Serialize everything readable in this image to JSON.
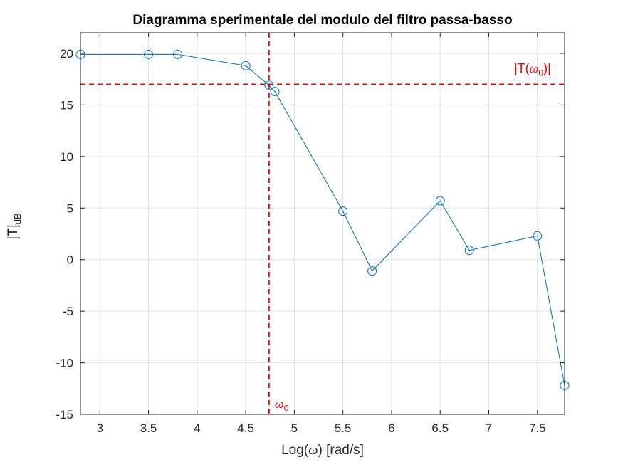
{
  "chart_data": {
    "type": "line",
    "title": "Diagramma sperimentale del modulo del filtro passa-basso",
    "xlabel": "Log(ω) [rad/s]",
    "ylabel": "|T|dB",
    "xlim": [
      2.8,
      7.78
    ],
    "ylim": [
      -15,
      22
    ],
    "xticks": [
      3,
      3.5,
      4,
      4.5,
      5,
      5.5,
      6,
      6.5,
      7,
      7.5
    ],
    "xtick_labels": [
      "3",
      "3.5",
      "4",
      "4.5",
      "5",
      "5.5",
      "6",
      "6.5",
      "7",
      "7.5"
    ],
    "yticks": [
      -15,
      -10,
      -5,
      0,
      5,
      10,
      15,
      20
    ],
    "ytick_labels": [
      "-15",
      "-10",
      "-5",
      "0",
      "5",
      "10",
      "15",
      "20"
    ],
    "grid": true,
    "series": [
      {
        "color": "#0072bd",
        "marker": "circle",
        "x": [
          2.8,
          3.5,
          3.8,
          4.5,
          4.74,
          4.8,
          5.5,
          5.8,
          6.5,
          6.8,
          7.5,
          7.78
        ],
        "y": [
          19.9,
          19.9,
          19.9,
          18.8,
          16.9,
          16.3,
          4.7,
          -1.1,
          5.7,
          0.9,
          2.3,
          -12.2
        ]
      }
    ],
    "reference_lines": [
      {
        "orientation": "horizontal",
        "value": 17.0,
        "color": "#ff0000",
        "style": "dashed"
      },
      {
        "orientation": "vertical",
        "value": 4.74,
        "color": "#ff0000",
        "style": "dashed"
      }
    ],
    "annotations": {
      "T_omega0_prefix": "|T(",
      "T_omega0_symbol": "ω",
      "T_omega0_sub": "0",
      "T_omega0_suffix": ")|",
      "omega0_symbol": "ω",
      "omega0_sub": "0"
    }
  },
  "axis_text": {
    "xlabel_prefix": "Log(",
    "xlabel_symbol": "ω",
    "xlabel_suffix": ") [rad/s]",
    "ylabel_main": "|T|",
    "ylabel_sub": "dB"
  }
}
